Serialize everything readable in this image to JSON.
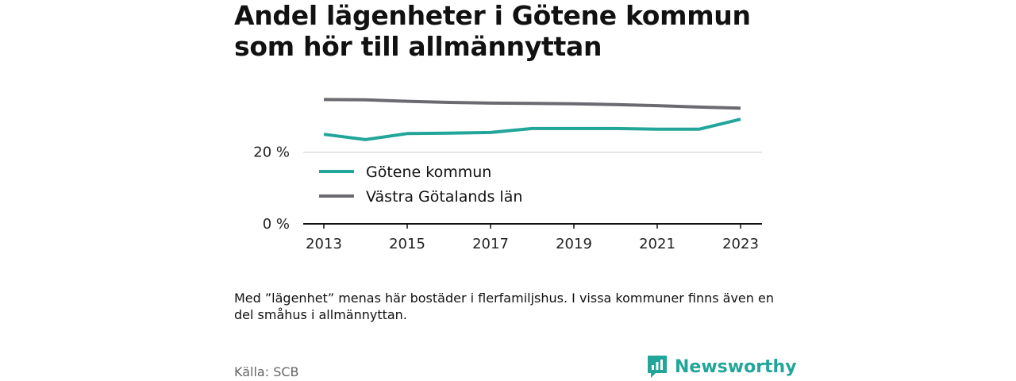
{
  "title": "Andel lägenheter i Götene kommun som hör till allmännyttan",
  "note": "Med ”lägenhet” menas här bostäder i flerfamiljshus. I vissa kommuner finns även en del småhus i allmännyttan.",
  "source": "Källa: SCB",
  "brand": {
    "name": "Newsworthy",
    "icon": "newsworthy-logo-icon",
    "color": "#22a69a"
  },
  "chart_data": {
    "type": "line",
    "x": [
      2013,
      2014,
      2015,
      2016,
      2017,
      2018,
      2019,
      2020,
      2021,
      2022,
      2023
    ],
    "x_ticks": [
      2013,
      2015,
      2017,
      2019,
      2021,
      2023
    ],
    "x_tick_labels": [
      "2013",
      "2015",
      "2017",
      "2019",
      "2021",
      "2023"
    ],
    "y_ticks": [
      0,
      20
    ],
    "y_tick_labels": [
      "0 %",
      "20 %"
    ],
    "ylim": [
      0,
      37
    ],
    "grid": true,
    "legend": "top-left",
    "series": [
      {
        "name": "Götene kommun",
        "color": "#22a69a",
        "values": [
          25.0,
          23.5,
          25.2,
          25.3,
          25.5,
          26.6,
          26.6,
          26.6,
          26.4,
          26.4,
          29.2
        ]
      },
      {
        "name": "Västra Götalands län",
        "color": "#6b6a70",
        "values": [
          34.7,
          34.6,
          34.2,
          33.9,
          33.7,
          33.6,
          33.5,
          33.3,
          33.0,
          32.6,
          32.3
        ]
      }
    ]
  }
}
